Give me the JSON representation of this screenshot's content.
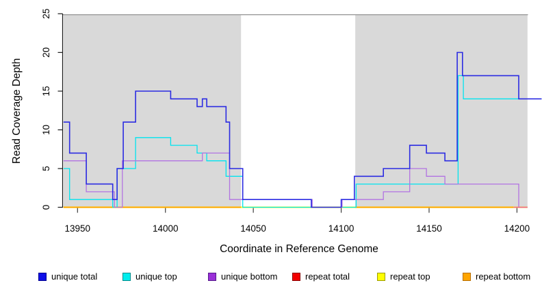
{
  "figure": {
    "y_axis_title": "Read Coverage Depth",
    "x_axis_title": "Coordinate in Reference Genome"
  },
  "colors": {
    "repeat_region_shading": "#d9d9d9",
    "plot_top_border": "#8f8f8f",
    "axis_line": "#1a1a1a",
    "tick_mark": "#3c3c3c",
    "tick_label": "#000000"
  },
  "legend": {
    "items": [
      {
        "id": "unique-total",
        "label": "unique total",
        "fill": "#0f0fe8",
        "border": "#000090"
      },
      {
        "id": "unique-top",
        "label": "unique top",
        "fill": "#00eded",
        "border": "#008b8b"
      },
      {
        "id": "unique-bottom",
        "label": "unique bottom",
        "fill": "#9a30d8",
        "border": "#551a8b"
      },
      {
        "id": "repeat-total",
        "label": "repeat total",
        "fill": "#f20000",
        "border": "#8b0000"
      },
      {
        "id": "repeat-top",
        "label": "repeat top",
        "fill": "#ffff00",
        "border": "#9c9c00"
      },
      {
        "id": "repeat-bottom",
        "label": "repeat bottom",
        "fill": "#ffa500",
        "border": "#b86e00"
      }
    ]
  },
  "chart_data": {
    "type": "line",
    "step": true,
    "title": "",
    "xlabel": "Coordinate in Reference Genome",
    "ylabel": "Read Coverage Depth",
    "xlim": [
      13942,
      14214
    ],
    "ylim": [
      0,
      25
    ],
    "x_ticks": [
      13950,
      14000,
      14050,
      14100,
      14150,
      14200
    ],
    "y_ticks": [
      0,
      5,
      10,
      15,
      20,
      25
    ],
    "grid": false,
    "legend_position": "bottom",
    "repeat_regions": [
      [
        13942,
        14043
      ],
      [
        14108,
        14206
      ]
    ],
    "series": [
      {
        "id": "repeat-top",
        "name": "repeat top",
        "color": "#ffff2e",
        "width": 2.2,
        "segments": [
          [
            [
              13942,
              0
            ],
            [
              14206,
              0
            ]
          ]
        ]
      },
      {
        "id": "repeat-bottom",
        "name": "repeat bottom",
        "color": "#ff9f00",
        "width": 1.8,
        "segments": [
          [
            [
              13942,
              0
            ],
            [
              14043,
              0
            ]
          ],
          [
            [
              14108,
              0
            ],
            [
              14198,
              0
            ]
          ]
        ]
      },
      {
        "id": "unique-top",
        "name": "unique top",
        "color": "#00e4ef",
        "width": 1.3,
        "segments": [
          [
            [
              13942,
              5
            ],
            [
              13945.5,
              1
            ],
            [
              13970,
              0
            ],
            [
              13972.5,
              5
            ],
            [
              13983,
              9
            ],
            [
              14003,
              8
            ],
            [
              14018,
              7
            ],
            [
              14023.5,
              6
            ],
            [
              14034.5,
              4
            ],
            [
              14044,
              0
            ],
            [
              14108.5,
              3
            ],
            [
              14166.5,
              17
            ],
            [
              14169.5,
              14
            ],
            [
              14214,
              14
            ]
          ]
        ]
      },
      {
        "id": "unique-bottom",
        "name": "unique bottom",
        "color": "#b273e2",
        "width": 1.3,
        "segments": [
          [
            [
              13942,
              6
            ],
            [
              13955,
              2
            ],
            [
              13971,
              0
            ],
            [
              13975.5,
              6
            ],
            [
              14021,
              7
            ],
            [
              14036.5,
              1
            ],
            [
              14083.5,
              0
            ],
            [
              14100.5,
              1
            ],
            [
              14124,
              2
            ],
            [
              14139,
              5
            ],
            [
              14148.5,
              4
            ],
            [
              14159,
              3
            ],
            [
              14201,
              0
            ],
            [
              14206,
              0
            ]
          ]
        ]
      },
      {
        "id": "unique-total",
        "name": "unique total",
        "color": "#2b2be2",
        "width": 1.6,
        "segments": [
          [
            [
              13942,
              11
            ],
            [
              13945.5,
              7
            ],
            [
              13955,
              3
            ],
            [
              13970,
              1
            ],
            [
              13972.5,
              5
            ],
            [
              13976,
              11
            ],
            [
              13983,
              15
            ],
            [
              14003,
              14
            ],
            [
              14018,
              13
            ],
            [
              14021,
              14
            ],
            [
              14023.5,
              13
            ],
            [
              14034.5,
              11
            ],
            [
              14036.5,
              5
            ],
            [
              14044,
              1
            ],
            [
              14083,
              0
            ],
            [
              14100,
              1
            ],
            [
              14107.5,
              4
            ],
            [
              14124,
              5
            ],
            [
              14139,
              8
            ],
            [
              14148.5,
              7
            ],
            [
              14159,
              6
            ],
            [
              14166,
              20
            ],
            [
              14169,
              17
            ],
            [
              14201,
              14
            ],
            [
              14214,
              14
            ]
          ]
        ]
      },
      {
        "id": "repeat-total",
        "name": "repeat total",
        "color": "#ef6292",
        "width": 1.4,
        "segments": [
          [
            [
              14198,
              0
            ],
            [
              14206,
              0
            ]
          ]
        ]
      }
    ]
  }
}
